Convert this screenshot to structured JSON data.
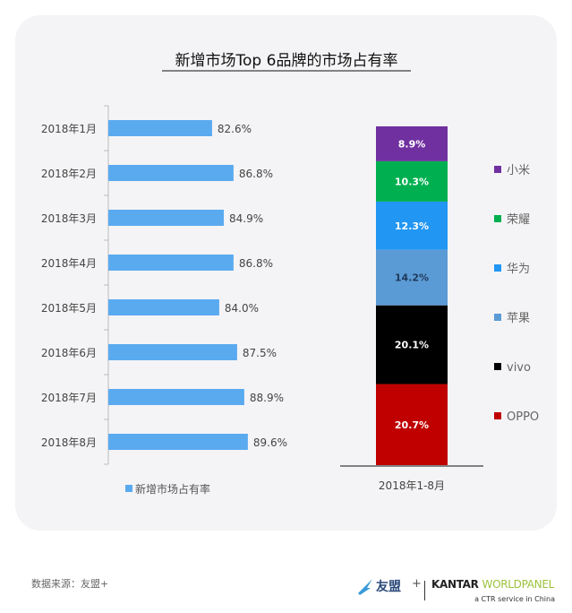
{
  "chart_data": [
    {
      "type": "bar",
      "orientation": "horizontal",
      "title": "新增市场Top 6品牌的市场占有率",
      "categories": [
        "2018年1月",
        "2018年2月",
        "2018年3月",
        "2018年4月",
        "2018年5月",
        "2018年6月",
        "2018年7月",
        "2018年8月"
      ],
      "series": [
        {
          "name": "新增市场占有率",
          "values": [
            82.6,
            86.8,
            84.9,
            86.8,
            84.0,
            87.5,
            88.9,
            89.6
          ],
          "labels": [
            "82.6%",
            "86.8%",
            "84.9%",
            "86.8%",
            "84.0%",
            "87.5%",
            "88.9%",
            "89.6%"
          ],
          "color": "#5aaaf0"
        }
      ],
      "legend": "bottom-left"
    },
    {
      "type": "bar",
      "stacked": true,
      "categories": [
        "2018年1-8月"
      ],
      "series": [
        {
          "name": "OPPO",
          "value": 20.7,
          "label": "20.7%",
          "color": "#c00000"
        },
        {
          "name": "vivo",
          "value": 20.1,
          "label": "20.1%",
          "color": "#000000"
        },
        {
          "name": "苹果",
          "value": 14.2,
          "label": "14.2%",
          "color": "#5b9bd5"
        },
        {
          "name": "华为",
          "value": 12.3,
          "label": "12.3%",
          "color": "#2196f3"
        },
        {
          "name": "荣耀",
          "value": 10.3,
          "label": "10.3%",
          "color": "#00b050"
        },
        {
          "name": "小米",
          "value": 8.9,
          "label": "8.9%",
          "color": "#7030a0"
        }
      ],
      "legend": "right"
    }
  ],
  "footer": {
    "source": "数据来源：友盟+",
    "logo_youmeng": "友盟",
    "logo_plus": "+",
    "logo_kantar": "KANTAR",
    "logo_worldpanel": "WORLDPANEL",
    "logo_tagline": "a CTR service in China"
  }
}
